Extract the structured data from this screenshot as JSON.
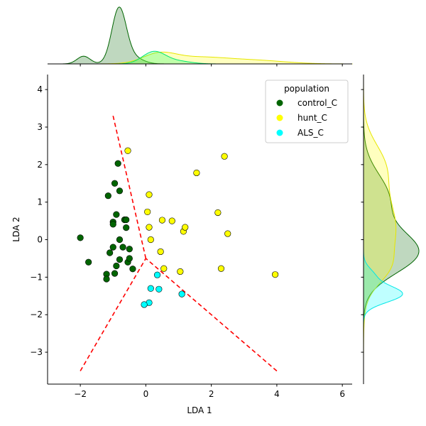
{
  "chart_data": {
    "type": "scatter",
    "title": "",
    "xlabel": "LDA 1",
    "ylabel": "LDA 2",
    "xlim": [
      -3.0,
      6.3
    ],
    "ylim": [
      -3.85,
      4.4
    ],
    "xticks": [
      -2,
      0,
      2,
      4,
      6
    ],
    "yticks": [
      -3,
      -2,
      -1,
      0,
      1,
      2,
      3,
      4
    ],
    "tick_labels_x": [
      "−2",
      "0",
      "2",
      "4",
      "6"
    ],
    "tick_labels_y": [
      "−3",
      "−2",
      "−1",
      "0",
      "1",
      "2",
      "3",
      "4"
    ],
    "legend": {
      "title": "population",
      "position": "top-right",
      "entries": [
        {
          "name": "control_C",
          "color": "#006400"
        },
        {
          "name": "hunt_C",
          "color": "#ffff00"
        },
        {
          "name": "ALS_C",
          "color": "#00ffff"
        }
      ]
    },
    "series": [
      {
        "name": "control_C",
        "color": "#006400",
        "points": [
          [
            -2.0,
            0.05
          ],
          [
            -1.75,
            -0.6
          ],
          [
            -1.2,
            -0.92
          ],
          [
            -1.2,
            -1.05
          ],
          [
            -1.1,
            -0.35
          ],
          [
            -1.15,
            1.17
          ],
          [
            -1.0,
            -0.2
          ],
          [
            -1.0,
            0.47
          ],
          [
            -1.0,
            0.41
          ],
          [
            -0.95,
            1.5
          ],
          [
            -0.9,
            0.67
          ],
          [
            -0.95,
            -0.9
          ],
          [
            -0.9,
            -0.7
          ],
          [
            -0.85,
            2.03
          ],
          [
            -0.8,
            1.3
          ],
          [
            -0.8,
            -0.53
          ],
          [
            -0.7,
            -0.2
          ],
          [
            -0.65,
            0.53
          ],
          [
            -0.6,
            0.53
          ],
          [
            -0.6,
            0.32
          ],
          [
            -0.55,
            -0.6
          ],
          [
            -0.5,
            -0.5
          ],
          [
            -0.5,
            -0.25
          ],
          [
            -0.4,
            -0.78
          ],
          [
            -0.8,
            0.0
          ]
        ]
      },
      {
        "name": "hunt_C",
        "color": "#ffff00",
        "points": [
          [
            -0.55,
            2.37
          ],
          [
            0.05,
            0.74
          ],
          [
            0.1,
            1.2
          ],
          [
            0.1,
            0.33
          ],
          [
            0.15,
            0.0
          ],
          [
            0.45,
            -0.32
          ],
          [
            0.5,
            0.52
          ],
          [
            0.55,
            -0.77
          ],
          [
            0.8,
            0.5
          ],
          [
            1.05,
            -0.85
          ],
          [
            1.15,
            0.22
          ],
          [
            1.2,
            0.33
          ],
          [
            1.55,
            1.78
          ],
          [
            2.2,
            0.72
          ],
          [
            2.3,
            -0.77
          ],
          [
            2.4,
            2.22
          ],
          [
            2.5,
            0.16
          ],
          [
            3.95,
            -0.93
          ]
        ]
      },
      {
        "name": "ALS_C",
        "color": "#00ffff",
        "points": [
          [
            0.35,
            -0.94
          ],
          [
            0.15,
            -1.3
          ],
          [
            0.4,
            -1.32
          ],
          [
            0.1,
            -1.68
          ],
          [
            -0.05,
            -1.73
          ],
          [
            1.1,
            -1.45
          ]
        ]
      }
    ],
    "decision_boundaries": [
      {
        "name": "boundary-upper",
        "color": "#ff0000",
        "style": "dashed",
        "points": [
          [
            -1.0,
            3.3
          ],
          [
            0.0,
            -0.5
          ]
        ]
      },
      {
        "name": "boundary-left",
        "color": "#ff0000",
        "style": "dashed",
        "points": [
          [
            -2.0,
            -3.5
          ],
          [
            0.0,
            -0.5
          ]
        ]
      },
      {
        "name": "boundary-right",
        "color": "#ff0000",
        "style": "dashed",
        "points": [
          [
            4.0,
            -3.5
          ],
          [
            0.0,
            -0.5
          ]
        ]
      }
    ],
    "marginal_x": {
      "series": [
        {
          "name": "control_C",
          "fill": "#006400",
          "stroke": "#006400",
          "peaks": [
            {
              "mu": -0.82,
              "sigma": 0.22,
              "w": 0.85
            },
            {
              "mu": -1.9,
              "sigma": 0.2,
              "w": 0.12
            },
            {
              "mu": -0.4,
              "sigma": 0.3,
              "w": 0.1
            }
          ]
        },
        {
          "name": "hunt_C",
          "fill": "#ffff00",
          "stroke": "#e6e600",
          "peaks": [
            {
              "mu": 0.4,
              "sigma": 0.5,
              "w": 0.14
            },
            {
              "mu": 1.6,
              "sigma": 0.9,
              "w": 0.1
            },
            {
              "mu": 3.4,
              "sigma": 0.9,
              "w": 0.05
            }
          ]
        },
        {
          "name": "ALS_C",
          "fill": "#00ff66",
          "stroke": "#00e673",
          "peaks": [
            {
              "mu": 0.25,
              "sigma": 0.35,
              "w": 0.19
            },
            {
              "mu": 1.0,
              "sigma": 0.4,
              "w": 0.04
            }
          ]
        }
      ]
    },
    "marginal_y": {
      "series": [
        {
          "name": "control_C",
          "fill": "#006400",
          "stroke": "#006400",
          "peaks": [
            {
              "mu": -0.35,
              "sigma": 0.55,
              "w": 0.55
            },
            {
              "mu": 1.1,
              "sigma": 0.65,
              "w": 0.26
            }
          ]
        },
        {
          "name": "hunt_C",
          "fill": "#ffff00",
          "stroke": "#e6e600",
          "peaks": [
            {
              "mu": 0.3,
              "sigma": 0.9,
              "w": 0.33
            },
            {
              "mu": 2.0,
              "sigma": 0.6,
              "w": 0.18
            },
            {
              "mu": -0.8,
              "sigma": 0.4,
              "w": 0.12
            }
          ]
        },
        {
          "name": "ALS_C",
          "fill": "#00ffff",
          "stroke": "#00e6e6",
          "peaks": [
            {
              "mu": -1.45,
              "sigma": 0.22,
              "w": 0.4
            },
            {
              "mu": -0.95,
              "sigma": 0.2,
              "w": 0.1
            }
          ]
        }
      ]
    }
  }
}
